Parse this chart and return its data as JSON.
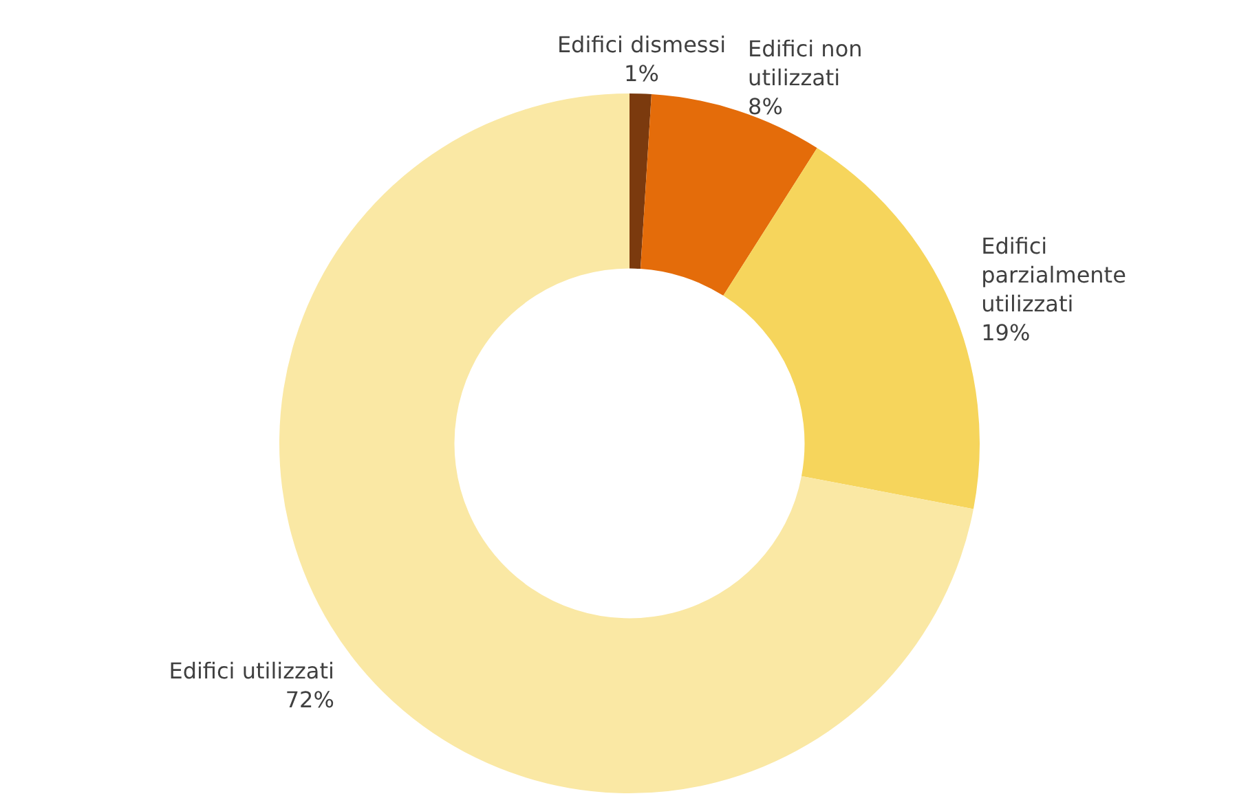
{
  "chart_data": {
    "type": "donut",
    "categories": [
      "Edifici dismessi",
      "Edifici non utilizzati",
      "Edifici parzialmente utilizzati",
      "Edifici utilizzati"
    ],
    "values": [
      1,
      8,
      19,
      72
    ],
    "value_labels": [
      "1%",
      "8%",
      "19%",
      "72%"
    ],
    "colors": [
      "#7b3a0e",
      "#e46c0a",
      "#f6d55c",
      "#fae8a4"
    ],
    "legend": false
  }
}
